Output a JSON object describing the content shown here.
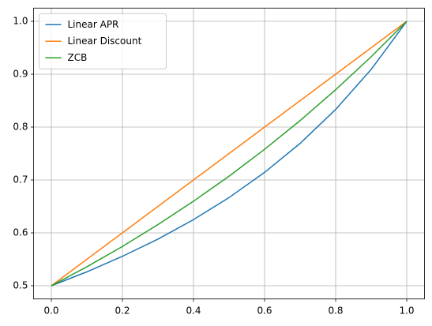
{
  "chart_data": {
    "type": "line",
    "x": [
      0,
      0.1,
      0.2,
      0.3,
      0.4,
      0.5,
      0.6,
      0.7,
      0.8,
      0.9,
      1.0
    ],
    "series": [
      {
        "name": "Linear APR",
        "color": "#1f77b4",
        "values": [
          0.5,
          0.5263,
          0.5556,
          0.5882,
          0.625,
          0.6667,
          0.7143,
          0.7692,
          0.8333,
          0.9091,
          1.0
        ]
      },
      {
        "name": "Linear Discount",
        "color": "#ff7f0e",
        "values": [
          0.5,
          0.55,
          0.6,
          0.65,
          0.7,
          0.75,
          0.8,
          0.85,
          0.9,
          0.95,
          1.0
        ]
      },
      {
        "name": "ZCB",
        "color": "#2ca02c",
        "values": [
          0.5,
          0.5359,
          0.5743,
          0.6156,
          0.6598,
          0.7071,
          0.7579,
          0.8123,
          0.8706,
          0.933,
          1.0
        ]
      }
    ],
    "xlim": [
      -0.05,
      1.05
    ],
    "ylim": [
      0.475,
      1.025
    ],
    "xticks": [
      {
        "value": 0,
        "label": "0.0"
      },
      0.2,
      0.4,
      0.6,
      0.8,
      {
        "value": 1,
        "label": "1.0"
      }
    ],
    "yticks": [
      0.5,
      0.6,
      0.7,
      0.8,
      0.9,
      {
        "value": 1,
        "label": "1.0"
      }
    ],
    "grid": true,
    "legend": "upper-left"
  }
}
